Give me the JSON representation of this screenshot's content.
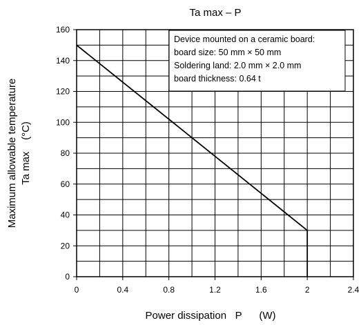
{
  "chart_data": {
    "type": "line",
    "title": "Ta max – P",
    "xlabel": "Power dissipation   P      (W)",
    "ylabel_line1": "Maximum allowable temperature",
    "ylabel_line2": "Ta max    (°C)",
    "xlim": [
      0,
      2.4
    ],
    "ylim": [
      0,
      160
    ],
    "x_ticks": [
      0,
      0.4,
      0.8,
      1.2,
      1.6,
      2,
      2.4
    ],
    "x_tick_labels": [
      "0",
      "0.4",
      "0.8",
      "1.2",
      "1.6",
      "2",
      "2.4"
    ],
    "y_ticks": [
      0,
      20,
      40,
      60,
      80,
      100,
      120,
      140,
      160
    ],
    "y_tick_labels": [
      "0",
      "20",
      "40",
      "60",
      "80",
      "100",
      "120",
      "140",
      "160"
    ],
    "grid": true,
    "series": [
      {
        "x": [
          0,
          2,
          2
        ],
        "y": [
          150,
          30,
          0
        ]
      }
    ],
    "annotation": [
      "Device mounted on a ceramic board:",
      "board size: 50 mm × 50 mm",
      "Soldering land: 2.0 mm × 2.0 mm",
      "board thickness: 0.64 t"
    ]
  }
}
